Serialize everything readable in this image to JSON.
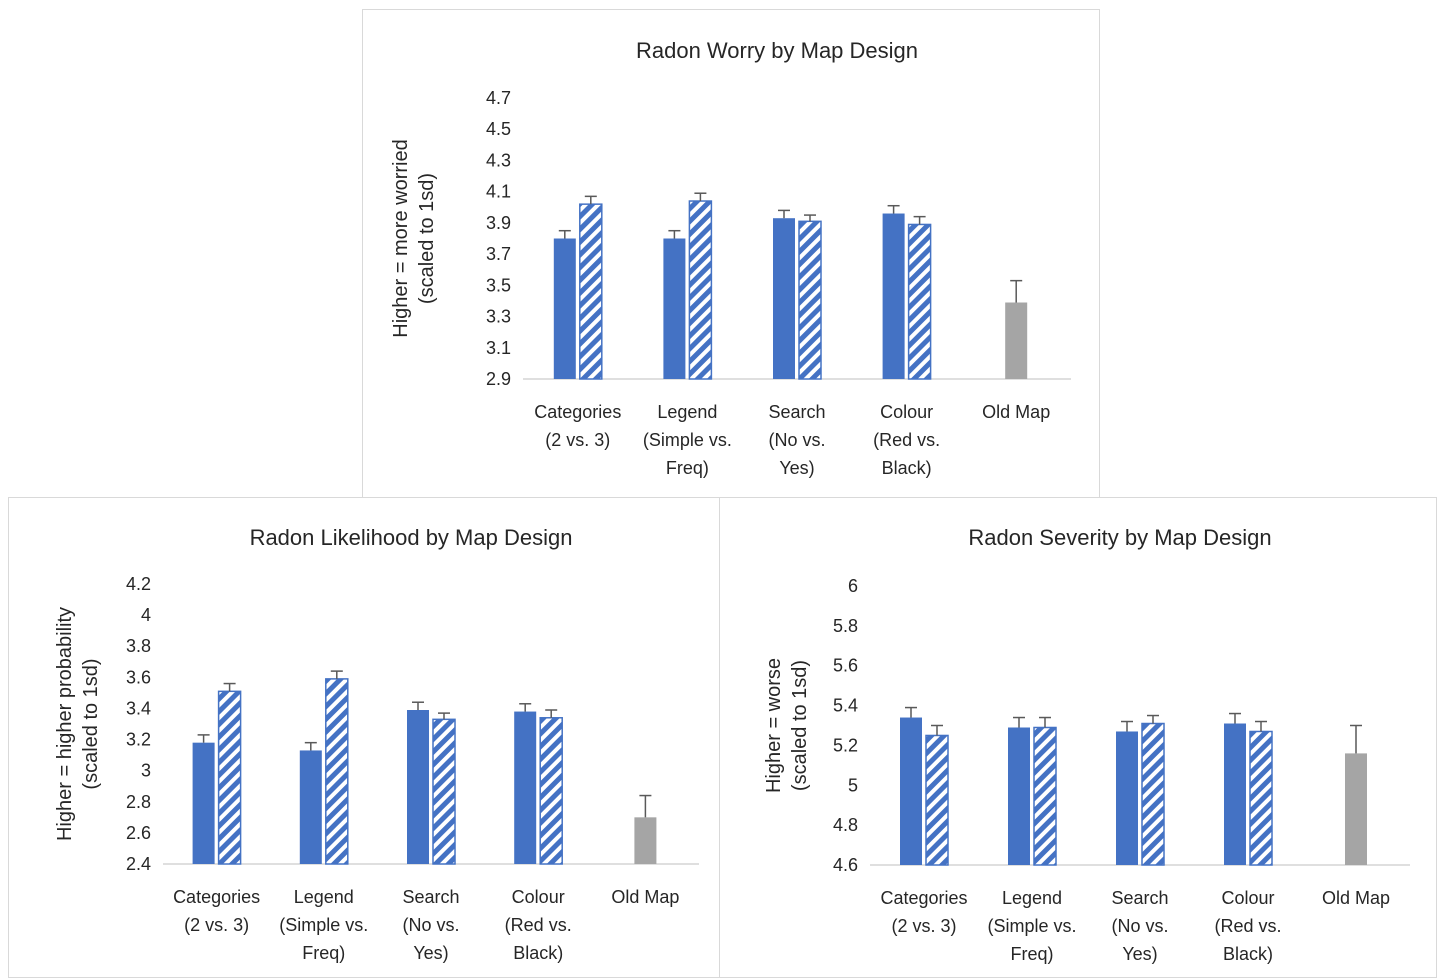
{
  "colors": {
    "solid": "#4472c4",
    "old_map": "#a5a5a5",
    "hatch_stripe": "#4472c4",
    "error_bar": "#595959",
    "axis": "#bfbfbf"
  },
  "chart_data": [
    {
      "id": "worry",
      "type": "bar",
      "title": "Radon Worry by Map Design",
      "ylabel_lines": [
        "Higher = more worried",
        "(scaled to 1sd)"
      ],
      "ylim": [
        2.9,
        4.7
      ],
      "yticks": [
        "2.9",
        "3.1",
        "3.3",
        "3.5",
        "3.7",
        "3.9",
        "4.1",
        "4.3",
        "4.5",
        "4.7"
      ],
      "categories": [
        [
          "Categories",
          "(2 vs. 3)"
        ],
        [
          "Legend",
          "(Simple vs.",
          "Freq)"
        ],
        [
          "Search",
          "(No vs.",
          "Yes)"
        ],
        [
          "Colour",
          "(Red vs.",
          "Black)"
        ],
        [
          "Old Map"
        ]
      ],
      "series": [
        {
          "style": "solid",
          "values": [
            3.8,
            3.8,
            3.93,
            3.96,
            null
          ],
          "errors": [
            0.05,
            0.05,
            0.05,
            0.05,
            null
          ]
        },
        {
          "style": "hatched",
          "values": [
            4.02,
            4.04,
            3.91,
            3.89,
            null
          ],
          "errors": [
            0.05,
            0.05,
            0.04,
            0.05,
            null
          ]
        },
        {
          "style": "grey",
          "values": [
            null,
            null,
            null,
            null,
            3.39
          ],
          "errors": [
            null,
            null,
            null,
            null,
            0.14
          ]
        }
      ],
      "grid": false,
      "legend": "none"
    },
    {
      "id": "likelihood",
      "type": "bar",
      "title": "Radon Likelihood by Map Design",
      "ylabel_lines": [
        "Higher = higher probability",
        "(scaled to 1sd)"
      ],
      "ylim": [
        2.4,
        4.2
      ],
      "yticks": [
        "2.4",
        "2.6",
        "2.8",
        "3",
        "3.2",
        "3.4",
        "3.6",
        "3.8",
        "4",
        "4.2"
      ],
      "categories": [
        [
          "Categories",
          "(2 vs. 3)"
        ],
        [
          "Legend",
          "(Simple vs.",
          "Freq)"
        ],
        [
          "Search",
          "(No vs.",
          "Yes)"
        ],
        [
          "Colour",
          "(Red vs.",
          "Black)"
        ],
        [
          "Old Map"
        ]
      ],
      "series": [
        {
          "style": "solid",
          "values": [
            3.18,
            3.13,
            3.39,
            3.38,
            null
          ],
          "errors": [
            0.05,
            0.05,
            0.05,
            0.05,
            null
          ]
        },
        {
          "style": "hatched",
          "values": [
            3.51,
            3.59,
            3.33,
            3.34,
            null
          ],
          "errors": [
            0.05,
            0.05,
            0.04,
            0.05,
            null
          ]
        },
        {
          "style": "grey",
          "values": [
            null,
            null,
            null,
            null,
            2.7
          ],
          "errors": [
            null,
            null,
            null,
            null,
            0.14
          ]
        }
      ],
      "grid": false,
      "legend": "none"
    },
    {
      "id": "severity",
      "type": "bar",
      "title": "Radon Severity by Map Design",
      "ylabel_lines": [
        "Higher = worse",
        "(scaled to 1sd)"
      ],
      "ylim": [
        4.6,
        6
      ],
      "yticks": [
        "4.6",
        "4.8",
        "5",
        "5.2",
        "5.4",
        "5.6",
        "5.8",
        "6"
      ],
      "categories": [
        [
          "Categories",
          "(2 vs. 3)"
        ],
        [
          "Legend",
          "(Simple vs.",
          "Freq)"
        ],
        [
          "Search",
          "(No vs.",
          "Yes)"
        ],
        [
          "Colour",
          "(Red vs.",
          "Black)"
        ],
        [
          "Old Map"
        ]
      ],
      "series": [
        {
          "style": "solid",
          "values": [
            5.34,
            5.29,
            5.27,
            5.31,
            null
          ],
          "errors": [
            0.05,
            0.05,
            0.05,
            0.05,
            null
          ]
        },
        {
          "style": "hatched",
          "values": [
            5.25,
            5.29,
            5.31,
            5.27,
            null
          ],
          "errors": [
            0.05,
            0.05,
            0.04,
            0.05,
            null
          ]
        },
        {
          "style": "grey",
          "values": [
            null,
            null,
            null,
            null,
            5.16
          ],
          "errors": [
            null,
            null,
            null,
            null,
            0.14
          ]
        }
      ],
      "grid": false,
      "legend": "none"
    }
  ]
}
